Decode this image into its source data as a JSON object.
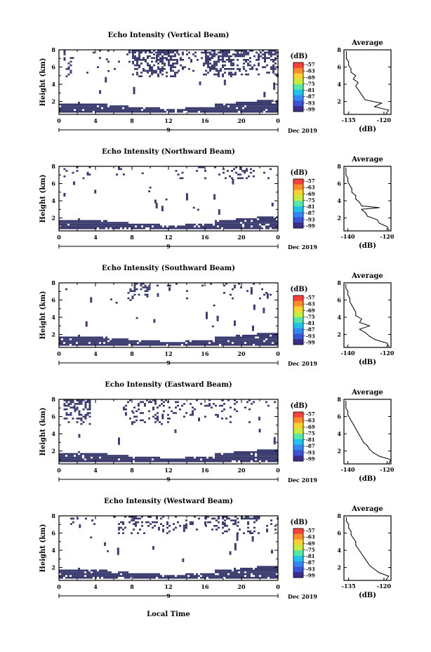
{
  "figure": {
    "xlabel_bottom": "Local Time",
    "date_label": "Dec 2019",
    "day_label": "9",
    "colorbar_unit": "(dB)",
    "colorbar_ticks": [
      "-57",
      "-63",
      "-69",
      "-75",
      "-81",
      "-87",
      "-93",
      "-99"
    ],
    "colorbar_colors": [
      "#f7413b",
      "#fb8c2d",
      "#f8d133",
      "#c8eb41",
      "#56e6a6",
      "#22c3e8",
      "#3686f6",
      "#3b54d5",
      "#3c2d86"
    ],
    "echo_color": "#3a3a6e"
  },
  "chart_data": [
    {
      "type": "heatmap",
      "title": "Echo Intensity (Vertical Beam)",
      "ylabel": "Height (km)",
      "xlim": [
        0,
        24
      ],
      "ylim": [
        0.5,
        8
      ],
      "xticks": [
        "0",
        "4",
        "8",
        "12",
        "16",
        "20",
        "0"
      ],
      "yticks": [
        "2",
        "4",
        "6",
        "8"
      ],
      "profile": {
        "title": "Average",
        "xlabel": "(dB)",
        "xlim": [
          -137,
          -117
        ],
        "xticks": [
          "-135",
          "-120"
        ],
        "x_tick_values": [
          -135,
          -120
        ],
        "height": [
          0.6,
          1.0,
          1.4,
          1.8,
          2.2,
          2.6,
          3.0,
          3.4,
          3.8,
          4.2,
          4.6,
          5.0,
          5.4,
          5.8,
          6.2,
          6.6,
          7.0,
          7.4,
          7.8
        ],
        "values": [
          -119,
          -118,
          -124,
          -121,
          -128,
          -129,
          -130,
          -131,
          -132,
          -131,
          -133,
          -132,
          -134,
          -134,
          -135,
          -135,
          -136,
          -136,
          -136
        ]
      }
    },
    {
      "type": "heatmap",
      "title": "Echo Intensity (Northward Beam)",
      "ylabel": "Height (km)",
      "xlim": [
        0,
        24
      ],
      "ylim": [
        0.5,
        8
      ],
      "xticks": [
        "0",
        "4",
        "8",
        "12",
        "16",
        "20",
        "0"
      ],
      "yticks": [
        "2",
        "4",
        "6",
        "8"
      ],
      "profile": {
        "title": "Average",
        "xlabel": "(dB)",
        "xlim": [
          -142,
          -118
        ],
        "xticks": [
          "-140",
          "-120"
        ],
        "x_tick_values": [
          -140,
          -120
        ],
        "height": [
          0.6,
          1.0,
          1.4,
          1.8,
          2.2,
          2.6,
          3.0,
          3.2,
          3.4,
          3.8,
          4.2,
          4.6,
          5.0,
          5.4,
          5.8,
          6.2,
          6.6,
          7.0,
          7.4,
          7.8
        ],
        "values": [
          -119,
          -120,
          -124,
          -125,
          -130,
          -131,
          -133,
          -124,
          -133,
          -134,
          -136,
          -136,
          -138,
          -138,
          -139,
          -140,
          -140,
          -141,
          -141,
          -141
        ]
      }
    },
    {
      "type": "heatmap",
      "title": "Echo Intensity (Southward Beam)",
      "ylabel": "Height (km)",
      "xlim": [
        0,
        24
      ],
      "ylim": [
        0.5,
        8
      ],
      "xticks": [
        "0",
        "4",
        "8",
        "12",
        "16",
        "20",
        "0"
      ],
      "yticks": [
        "2",
        "4",
        "6",
        "8"
      ],
      "profile": {
        "title": "Average",
        "xlabel": "(dB)",
        "xlim": [
          -142,
          -118
        ],
        "xticks": [
          "-140",
          "-120"
        ],
        "x_tick_values": [
          -140,
          -120
        ],
        "height": [
          0.6,
          1.0,
          1.4,
          1.8,
          2.2,
          2.6,
          3.0,
          3.4,
          3.8,
          4.2,
          4.6,
          5.0,
          5.4,
          5.8,
          6.2,
          6.6,
          7.0,
          7.4,
          7.8
        ],
        "values": [
          -119,
          -120,
          -126,
          -129,
          -131,
          -134,
          -129,
          -134,
          -133,
          -136,
          -136,
          -137,
          -138,
          -139,
          -139,
          -140,
          -140,
          -141,
          -141
        ]
      }
    },
    {
      "type": "heatmap",
      "title": "Echo Intensity (Eastward Beam)",
      "ylabel": "Height (km)",
      "xlim": [
        0,
        24
      ],
      "ylim": [
        0.5,
        8
      ],
      "xticks": [
        "0",
        "4",
        "8",
        "12",
        "16",
        "20",
        "0"
      ],
      "yticks": [
        "2",
        "4",
        "6",
        "8"
      ],
      "profile": {
        "title": "Average",
        "xlabel": "(dB)",
        "xlim": [
          -142,
          -118
        ],
        "xticks": [
          "-140",
          "-120"
        ],
        "x_tick_values": [
          -140,
          -120
        ],
        "height": [
          0.6,
          1.0,
          1.4,
          1.8,
          2.2,
          2.6,
          3.0,
          3.4,
          3.8,
          4.2,
          4.6,
          5.0,
          5.4,
          5.8,
          6.2,
          6.6,
          7.0,
          7.4,
          7.8
        ],
        "values": [
          -119,
          -118,
          -124,
          -127,
          -129,
          -130,
          -132,
          -133,
          -134,
          -135,
          -136,
          -137,
          -138,
          -139,
          -140,
          -140,
          -141,
          -141,
          -141
        ]
      }
    },
    {
      "type": "heatmap",
      "title": "Echo Intensity (Westward Beam)",
      "ylabel": "Height (km)",
      "xlim": [
        0,
        24
      ],
      "ylim": [
        0.5,
        8
      ],
      "xticks": [
        "0",
        "4",
        "8",
        "12",
        "16",
        "20",
        "0"
      ],
      "yticks": [
        "2",
        "4",
        "6",
        "8"
      ],
      "profile": {
        "title": "Average",
        "xlabel": "(dB)",
        "xlim": [
          -137,
          -117
        ],
        "xticks": [
          "-135",
          "-120"
        ],
        "x_tick_values": [
          -135,
          -120
        ],
        "height": [
          0.6,
          1.0,
          1.4,
          1.8,
          2.2,
          2.6,
          3.0,
          3.4,
          3.8,
          4.2,
          4.6,
          5.0,
          5.4,
          5.8,
          6.2,
          6.6,
          7.0,
          7.4,
          7.8
        ],
        "values": [
          -119,
          -118,
          -122,
          -124,
          -126,
          -127,
          -128,
          -129,
          -130,
          -131,
          -132,
          -132,
          -133,
          -134,
          -134,
          -135,
          -135,
          -136,
          -136
        ]
      }
    }
  ]
}
